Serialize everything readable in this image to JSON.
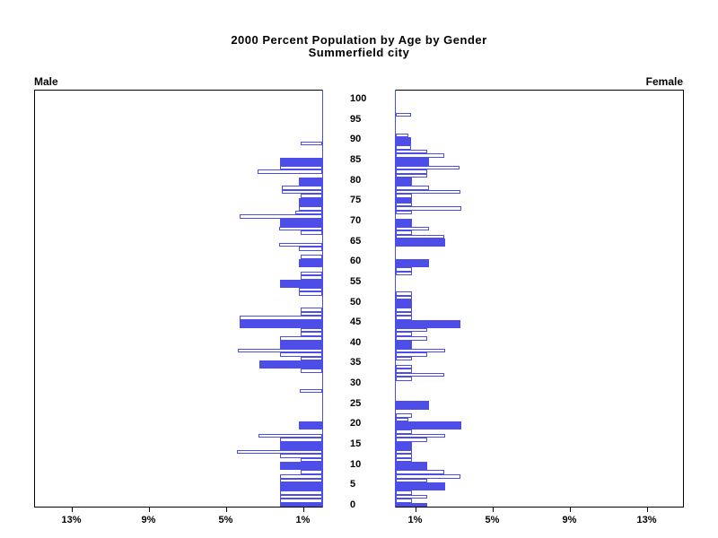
{
  "title": {
    "line1": "2000 Percent Population by Age by Gender",
    "line2": "Summerfield city"
  },
  "side_labels": {
    "male": "Male",
    "female": "Female"
  },
  "chart_data": {
    "type": "bar",
    "variant": "population-pyramid",
    "title": "2000 Percent Population by Age by Gender",
    "subtitle": "Summerfield city",
    "legend": "none",
    "grid": "off",
    "age_axis": {
      "min": 0,
      "max": 100,
      "tick_step": 5,
      "tick_labels": [
        "0",
        "5",
        "10",
        "15",
        "20",
        "25",
        "30",
        "35",
        "40",
        "45",
        "50",
        "55",
        "60",
        "65",
        "70",
        "75",
        "80",
        "85",
        "90",
        "95",
        "100"
      ]
    },
    "value_axis": {
      "unit": "%",
      "max": 15,
      "ticks": [
        1,
        5,
        9,
        13
      ],
      "tick_labels": [
        "1%",
        "5%",
        "9%",
        "13%"
      ]
    },
    "colors": {
      "bar_outline": "#4d4de8",
      "bar_solid_fill": "#4d4de8",
      "bar_empty_fill": "#ffffff",
      "frame": "#000000",
      "text": "#000000"
    },
    "series": [
      {
        "name": "Male",
        "side": "left",
        "points": [
          {
            "age": 89,
            "pct": 1.1,
            "solid": false
          },
          {
            "age": 85,
            "pct": 2.2,
            "solid": true
          },
          {
            "age": 83,
            "pct": 2.2,
            "solid": false
          },
          {
            "age": 82,
            "pct": 3.35,
            "solid": false
          },
          {
            "age": 80,
            "pct": 1.2,
            "solid": true
          },
          {
            "age": 78,
            "pct": 2.1,
            "solid": false
          },
          {
            "age": 77,
            "pct": 2.1,
            "solid": false
          },
          {
            "age": 76,
            "pct": 1.1,
            "solid": false
          },
          {
            "age": 75,
            "pct": 1.2,
            "solid": true
          },
          {
            "age": 73,
            "pct": 1.2,
            "solid": false
          },
          {
            "age": 72,
            "pct": 1.4,
            "solid": false
          },
          {
            "age": 71,
            "pct": 4.3,
            "solid": false
          },
          {
            "age": 70,
            "pct": 2.2,
            "solid": true
          },
          {
            "age": 68,
            "pct": 2.25,
            "solid": false
          },
          {
            "age": 67,
            "pct": 1.1,
            "solid": false
          },
          {
            "age": 64,
            "pct": 2.25,
            "solid": false
          },
          {
            "age": 63,
            "pct": 1.2,
            "solid": false
          },
          {
            "age": 61,
            "pct": 1.1,
            "solid": false
          },
          {
            "age": 60,
            "pct": 1.2,
            "solid": true
          },
          {
            "age": 57,
            "pct": 1.1,
            "solid": false
          },
          {
            "age": 56,
            "pct": 1.1,
            "solid": false
          },
          {
            "age": 55,
            "pct": 2.2,
            "solid": true
          },
          {
            "age": 53,
            "pct": 1.2,
            "solid": false
          },
          {
            "age": 52,
            "pct": 1.2,
            "solid": false
          },
          {
            "age": 48,
            "pct": 1.1,
            "solid": false
          },
          {
            "age": 47,
            "pct": 1.1,
            "solid": false
          },
          {
            "age": 46,
            "pct": 4.3,
            "solid": false
          },
          {
            "age": 45,
            "pct": 4.3,
            "solid": true
          },
          {
            "age": 43,
            "pct": 1.1,
            "solid": false
          },
          {
            "age": 42,
            "pct": 1.1,
            "solid": false
          },
          {
            "age": 41,
            "pct": 2.2,
            "solid": false
          },
          {
            "age": 40,
            "pct": 2.2,
            "solid": true
          },
          {
            "age": 38,
            "pct": 4.35,
            "solid": false
          },
          {
            "age": 37,
            "pct": 2.2,
            "solid": false
          },
          {
            "age": 36,
            "pct": 1.1,
            "solid": false
          },
          {
            "age": 35,
            "pct": 3.25,
            "solid": true
          },
          {
            "age": 33,
            "pct": 1.1,
            "solid": false
          },
          {
            "age": 28,
            "pct": 1.15,
            "solid": false
          },
          {
            "age": 20,
            "pct": 1.2,
            "solid": true
          },
          {
            "age": 17,
            "pct": 3.3,
            "solid": false
          },
          {
            "age": 16,
            "pct": 2.2,
            "solid": false
          },
          {
            "age": 15,
            "pct": 2.2,
            "solid": true
          },
          {
            "age": 13,
            "pct": 4.4,
            "solid": false
          },
          {
            "age": 12,
            "pct": 2.2,
            "solid": false
          },
          {
            "age": 11,
            "pct": 1.1,
            "solid": false
          },
          {
            "age": 10,
            "pct": 2.2,
            "solid": true
          },
          {
            "age": 8,
            "pct": 1.1,
            "solid": false
          },
          {
            "age": 7,
            "pct": 2.2,
            "solid": false
          },
          {
            "age": 6,
            "pct": 2.2,
            "solid": false
          },
          {
            "age": 5,
            "pct": 2.2,
            "solid": true
          },
          {
            "age": 3,
            "pct": 2.2,
            "solid": false
          },
          {
            "age": 2,
            "pct": 2.2,
            "solid": false
          },
          {
            "age": 1,
            "pct": 2.2,
            "solid": false
          },
          {
            "age": 0,
            "pct": 2.2,
            "solid": true
          }
        ]
      },
      {
        "name": "Female",
        "side": "right",
        "points": [
          {
            "age": 96,
            "pct": 0.8,
            "solid": false
          },
          {
            "age": 91,
            "pct": 0.65,
            "solid": false
          },
          {
            "age": 90,
            "pct": 0.8,
            "solid": true
          },
          {
            "age": 88,
            "pct": 0.8,
            "solid": false
          },
          {
            "age": 87,
            "pct": 1.65,
            "solid": false
          },
          {
            "age": 86,
            "pct": 2.5,
            "solid": false
          },
          {
            "age": 85,
            "pct": 1.7,
            "solid": true
          },
          {
            "age": 83,
            "pct": 3.3,
            "solid": false
          },
          {
            "age": 82,
            "pct": 1.65,
            "solid": false
          },
          {
            "age": 81,
            "pct": 1.65,
            "solid": false
          },
          {
            "age": 80,
            "pct": 0.85,
            "solid": true
          },
          {
            "age": 78,
            "pct": 1.7,
            "solid": false
          },
          {
            "age": 77,
            "pct": 3.35,
            "solid": false
          },
          {
            "age": 76,
            "pct": 0.85,
            "solid": false
          },
          {
            "age": 75,
            "pct": 0.85,
            "solid": true
          },
          {
            "age": 74,
            "pct": 0.85,
            "solid": false
          },
          {
            "age": 73,
            "pct": 3.4,
            "solid": false
          },
          {
            "age": 72,
            "pct": 0.85,
            "solid": false
          },
          {
            "age": 70,
            "pct": 0.85,
            "solid": true
          },
          {
            "age": 68,
            "pct": 1.7,
            "solid": false
          },
          {
            "age": 67,
            "pct": 0.85,
            "solid": false
          },
          {
            "age": 66,
            "pct": 2.5,
            "solid": false
          },
          {
            "age": 65,
            "pct": 2.55,
            "solid": true
          },
          {
            "age": 60,
            "pct": 1.7,
            "solid": true
          },
          {
            "age": 58,
            "pct": 0.85,
            "solid": false
          },
          {
            "age": 57,
            "pct": 0.85,
            "solid": false
          },
          {
            "age": 52,
            "pct": 0.85,
            "solid": false
          },
          {
            "age": 51,
            "pct": 0.85,
            "solid": false
          },
          {
            "age": 50,
            "pct": 0.85,
            "solid": true
          },
          {
            "age": 48,
            "pct": 0.85,
            "solid": false
          },
          {
            "age": 47,
            "pct": 0.85,
            "solid": false
          },
          {
            "age": 46,
            "pct": 0.85,
            "solid": false
          },
          {
            "age": 45,
            "pct": 3.35,
            "solid": true
          },
          {
            "age": 43,
            "pct": 1.65,
            "solid": false
          },
          {
            "age": 42,
            "pct": 0.85,
            "solid": false
          },
          {
            "age": 41,
            "pct": 1.65,
            "solid": false
          },
          {
            "age": 40,
            "pct": 0.85,
            "solid": true
          },
          {
            "age": 38,
            "pct": 2.55,
            "solid": false
          },
          {
            "age": 37,
            "pct": 1.65,
            "solid": false
          },
          {
            "age": 36,
            "pct": 0.85,
            "solid": false
          },
          {
            "age": 34,
            "pct": 0.85,
            "solid": false
          },
          {
            "age": 33,
            "pct": 0.85,
            "solid": false
          },
          {
            "age": 32,
            "pct": 2.5,
            "solid": false
          },
          {
            "age": 31,
            "pct": 0.85,
            "solid": false
          },
          {
            "age": 25,
            "pct": 1.7,
            "solid": true
          },
          {
            "age": 22,
            "pct": 0.85,
            "solid": false
          },
          {
            "age": 21,
            "pct": 0.65,
            "solid": false
          },
          {
            "age": 20,
            "pct": 3.4,
            "solid": true
          },
          {
            "age": 18,
            "pct": 0.85,
            "solid": false
          },
          {
            "age": 17,
            "pct": 2.55,
            "solid": false
          },
          {
            "age": 16,
            "pct": 1.65,
            "solid": false
          },
          {
            "age": 15,
            "pct": 0.85,
            "solid": true
          },
          {
            "age": 13,
            "pct": 0.85,
            "solid": false
          },
          {
            "age": 12,
            "pct": 0.85,
            "solid": false
          },
          {
            "age": 11,
            "pct": 0.85,
            "solid": false
          },
          {
            "age": 10,
            "pct": 1.65,
            "solid": true
          },
          {
            "age": 8,
            "pct": 2.5,
            "solid": false
          },
          {
            "age": 7,
            "pct": 3.35,
            "solid": false
          },
          {
            "age": 6,
            "pct": 1.65,
            "solid": false
          },
          {
            "age": 5,
            "pct": 2.55,
            "solid": true
          },
          {
            "age": 3,
            "pct": 0.85,
            "solid": false
          },
          {
            "age": 2,
            "pct": 1.65,
            "solid": false
          },
          {
            "age": 1,
            "pct": 0.85,
            "solid": false
          },
          {
            "age": 0,
            "pct": 1.65,
            "solid": true
          }
        ]
      }
    ]
  }
}
